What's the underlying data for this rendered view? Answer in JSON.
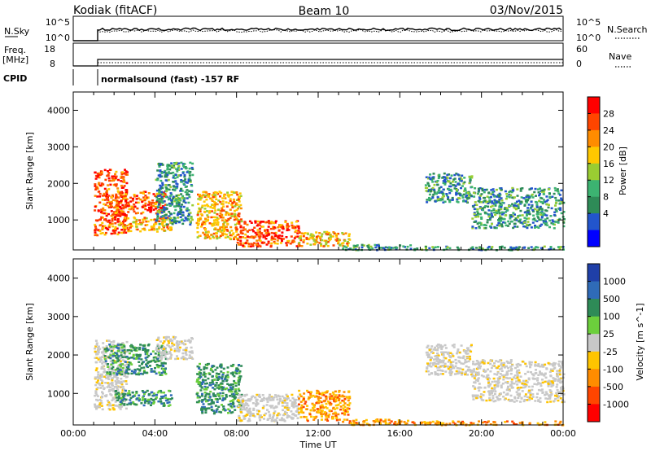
{
  "header": {
    "title_left": "Kodiak (fitACF)",
    "title_center": "Beam 10",
    "title_right": "03/Nov/2015"
  },
  "top_panels": {
    "nsky_label": "N.Sky",
    "nsky_ticks": [
      "10^5",
      "10^0"
    ],
    "nsearch_label": "N.Search",
    "nsearch_ticks": [
      "10^5",
      "10^0"
    ],
    "freq_label_1": "Freq.",
    "freq_label_2": "[MHz]",
    "freq_ticks": [
      "18",
      "8"
    ],
    "nave_label": "Nave",
    "nave_ticks": [
      "60",
      "0"
    ],
    "cpid_label": "CPID",
    "cpid_text": "normalsound (fast) -157 RF"
  },
  "chart_data": [
    {
      "type": "heatmap",
      "title": "",
      "xlabel": "Time UT",
      "ylabel": "Slant Range [km]",
      "xlim": [
        0,
        24
      ],
      "ylim": [
        180,
        4500
      ],
      "x_ticks": [
        "00:00",
        "04:00",
        "08:00",
        "12:00",
        "16:00",
        "20:00",
        "00:00"
      ],
      "y_ticks": [
        "1000",
        "2000",
        "3000",
        "4000"
      ],
      "colorbar": {
        "label": "Power [dB]",
        "ticks": [
          "28",
          "24",
          "20",
          "16",
          "12",
          "8",
          "4"
        ],
        "colors": [
          "#ff0000",
          "#ff4500",
          "#ff8c00",
          "#ffc800",
          "#9acd32",
          "#3cb371",
          "#2e8b57",
          "#2255cc",
          "#0000ff"
        ]
      },
      "scatter_regions": [
        {
          "t0": 1.0,
          "t1": 2.6,
          "r0": 600,
          "r1": 2400,
          "level": "high"
        },
        {
          "t0": 2.0,
          "t1": 4.5,
          "r0": 1200,
          "r1": 1800,
          "level": "high"
        },
        {
          "t0": 2.2,
          "t1": 4.8,
          "r0": 700,
          "r1": 1100,
          "level": "mid"
        },
        {
          "t0": 4.0,
          "t1": 5.8,
          "r0": 900,
          "r1": 2600,
          "level": "low"
        },
        {
          "t0": 6.0,
          "t1": 8.2,
          "r0": 500,
          "r1": 1800,
          "level": "mid"
        },
        {
          "t0": 8.0,
          "t1": 11.0,
          "r0": 300,
          "r1": 1000,
          "level": "high"
        },
        {
          "t0": 11.0,
          "t1": 13.5,
          "r0": 300,
          "r1": 700,
          "level": "mid"
        },
        {
          "t0": 13.0,
          "t1": 16.5,
          "r0": 200,
          "r1": 350,
          "level": "low"
        },
        {
          "t0": 17.2,
          "t1": 19.5,
          "r0": 1500,
          "r1": 2300,
          "level": "low"
        },
        {
          "t0": 19.5,
          "t1": 24.0,
          "r0": 800,
          "r1": 1900,
          "level": "low"
        },
        {
          "t0": 16.5,
          "t1": 24.0,
          "r0": 200,
          "r1": 300,
          "level": "low"
        }
      ]
    },
    {
      "type": "heatmap",
      "title": "",
      "xlabel": "Time UT",
      "ylabel": "Slant Range [km]",
      "xlim": [
        0,
        24
      ],
      "ylim": [
        180,
        4500
      ],
      "x_ticks": [
        "00:00",
        "04:00",
        "08:00",
        "12:00",
        "16:00",
        "20:00",
        "00:00"
      ],
      "y_ticks": [
        "1000",
        "2000",
        "3000",
        "4000"
      ],
      "colorbar": {
        "label": "Velocity [m s^-1]",
        "ticks": [
          "1000",
          "500",
          "100",
          "25",
          "-25",
          "-100",
          "-500",
          "-1000"
        ],
        "colors": [
          "#1f3fa8",
          "#2f6bb8",
          "#2e8b57",
          "#6ccf3c",
          "#c8c8c8",
          "#ffc400",
          "#ff8c00",
          "#ff4500",
          "#ff0000"
        ]
      },
      "scatter_regions": [
        {
          "t0": 1.0,
          "t1": 2.6,
          "r0": 600,
          "r1": 2400,
          "level": "gray"
        },
        {
          "t0": 1.5,
          "t1": 4.5,
          "r0": 1500,
          "r1": 2300,
          "level": "green"
        },
        {
          "t0": 2.0,
          "t1": 4.8,
          "r0": 700,
          "r1": 1100,
          "level": "green"
        },
        {
          "t0": 4.0,
          "t1": 5.8,
          "r0": 1900,
          "r1": 2500,
          "level": "gray"
        },
        {
          "t0": 6.0,
          "t1": 8.2,
          "r0": 500,
          "r1": 1800,
          "level": "green"
        },
        {
          "t0": 8.0,
          "t1": 11.0,
          "r0": 300,
          "r1": 1000,
          "level": "gray"
        },
        {
          "t0": 11.0,
          "t1": 13.5,
          "r0": 300,
          "r1": 1100,
          "level": "orange"
        },
        {
          "t0": 13.0,
          "t1": 16.5,
          "r0": 200,
          "r1": 350,
          "level": "orange"
        },
        {
          "t0": 17.2,
          "t1": 19.5,
          "r0": 1500,
          "r1": 2300,
          "level": "gray"
        },
        {
          "t0": 19.5,
          "t1": 24.0,
          "r0": 800,
          "r1": 1900,
          "level": "gray"
        },
        {
          "t0": 16.5,
          "t1": 24.0,
          "r0": 200,
          "r1": 300,
          "level": "orange"
        }
      ]
    }
  ]
}
